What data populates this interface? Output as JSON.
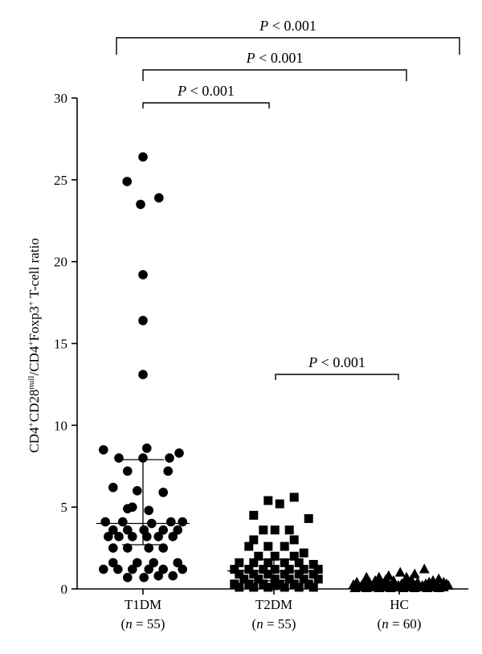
{
  "chart_data": {
    "type": "scatter",
    "subtype": "dot-plot",
    "ylabel": {
      "base1": "CD4",
      "sup1": "+",
      "base2": "CD28",
      "sup2": "null",
      "base3": "/CD4",
      "sup3": "+",
      "base4": "Foxp3",
      "sup4": "+",
      "base5": " T-cell ratio"
    },
    "ylim": [
      0,
      30
    ],
    "yticks": [
      "0",
      "5",
      "10",
      "15",
      "20",
      "25",
      "30"
    ],
    "grid": false,
    "legend": "none",
    "categories": [
      {
        "name": "T1DM",
        "n_prefix": "(",
        "n_var": "n",
        "n_suffix": " = 55)"
      },
      {
        "name": "T2DM",
        "n_prefix": "(",
        "n_var": "n",
        "n_suffix": " = 55)"
      },
      {
        "name": "HC",
        "n_prefix": "(",
        "n_var": "n",
        "n_suffix": " = 60)"
      }
    ],
    "comparisons": [
      {
        "from": 0,
        "to": 2,
        "p_symbol": "P",
        "p_text": " < 0.001"
      },
      {
        "from": 0,
        "to": 1,
        "p_symbol": "P",
        "p_text": " < 0.001"
      },
      {
        "from": 0,
        "to": 1,
        "p_symbol": "P",
        "p_text": " < 0.001"
      },
      {
        "from": 1,
        "to": 2,
        "p_symbol": "P",
        "p_text": " < 0.001"
      }
    ],
    "series": [
      {
        "group": "T1DM",
        "marker": "circle",
        "median": 4.0,
        "iqr": [
          2.7,
          7.9
        ],
        "points": [
          [
            0,
            26.4
          ],
          [
            -0.33,
            24.9
          ],
          [
            0.33,
            23.9
          ],
          [
            -0.05,
            23.5
          ],
          [
            0,
            19.2
          ],
          [
            0,
            16.4
          ],
          [
            0,
            13.1
          ],
          [
            -0.82,
            8.5
          ],
          [
            -0.5,
            8.0
          ],
          [
            0,
            8.0
          ],
          [
            0.55,
            8.0
          ],
          [
            0.75,
            8.3
          ],
          [
            0.08,
            8.6
          ],
          [
            -0.32,
            7.2
          ],
          [
            0.52,
            7.2
          ],
          [
            -0.62,
            6.2
          ],
          [
            -0.12,
            6.0
          ],
          [
            0.42,
            5.9
          ],
          [
            -0.22,
            5.0
          ],
          [
            -0.32,
            4.9
          ],
          [
            0.12,
            4.8
          ],
          [
            -0.78,
            4.1
          ],
          [
            -0.42,
            4.1
          ],
          [
            0.18,
            4.0
          ],
          [
            0.58,
            4.1
          ],
          [
            0.82,
            4.1
          ],
          [
            -0.62,
            3.6
          ],
          [
            -0.32,
            3.6
          ],
          [
            0.02,
            3.6
          ],
          [
            0.42,
            3.6
          ],
          [
            0.72,
            3.6
          ],
          [
            -0.72,
            3.2
          ],
          [
            -0.5,
            3.2
          ],
          [
            -0.22,
            3.2
          ],
          [
            0.08,
            3.2
          ],
          [
            0.32,
            3.2
          ],
          [
            0.62,
            3.2
          ],
          [
            -0.62,
            2.5
          ],
          [
            -0.32,
            2.5
          ],
          [
            0.12,
            2.5
          ],
          [
            0.42,
            2.5
          ],
          [
            -0.62,
            1.6
          ],
          [
            -0.12,
            1.6
          ],
          [
            0.22,
            1.6
          ],
          [
            0.72,
            1.6
          ],
          [
            -0.82,
            1.2
          ],
          [
            -0.52,
            1.2
          ],
          [
            -0.22,
            1.2
          ],
          [
            0.12,
            1.2
          ],
          [
            0.42,
            1.2
          ],
          [
            0.82,
            1.2
          ],
          [
            -0.32,
            0.7
          ],
          [
            0.02,
            0.7
          ],
          [
            0.32,
            0.8
          ],
          [
            0.62,
            0.8
          ]
        ]
      },
      {
        "group": "T2DM",
        "marker": "square",
        "median": 1.1,
        "iqr": [
          0.5,
          1.8
        ],
        "points": [
          [
            -0.12,
            5.4
          ],
          [
            0.12,
            5.2
          ],
          [
            0.42,
            5.6
          ],
          [
            -0.42,
            4.5
          ],
          [
            0.72,
            4.3
          ],
          [
            -0.22,
            3.6
          ],
          [
            0.02,
            3.6
          ],
          [
            0.32,
            3.6
          ],
          [
            -0.42,
            3.0
          ],
          [
            0.42,
            3.0
          ],
          [
            -0.52,
            2.6
          ],
          [
            -0.12,
            2.6
          ],
          [
            0.22,
            2.6
          ],
          [
            0.62,
            2.2
          ],
          [
            -0.32,
            2.0
          ],
          [
            0.02,
            2.0
          ],
          [
            0.42,
            2.0
          ],
          [
            -0.72,
            1.6
          ],
          [
            -0.42,
            1.6
          ],
          [
            -0.12,
            1.6
          ],
          [
            0.22,
            1.6
          ],
          [
            0.52,
            1.6
          ],
          [
            0.82,
            1.5
          ],
          [
            -0.82,
            1.2
          ],
          [
            -0.52,
            1.2
          ],
          [
            -0.22,
            1.2
          ],
          [
            0.02,
            1.2
          ],
          [
            0.32,
            1.2
          ],
          [
            0.62,
            1.2
          ],
          [
            0.92,
            1.2
          ],
          [
            -0.72,
            0.9
          ],
          [
            -0.42,
            0.9
          ],
          [
            -0.12,
            0.9
          ],
          [
            0.22,
            0.9
          ],
          [
            0.52,
            0.9
          ],
          [
            0.82,
            0.9
          ],
          [
            -0.62,
            0.6
          ],
          [
            -0.32,
            0.6
          ],
          [
            0.02,
            0.6
          ],
          [
            0.32,
            0.6
          ],
          [
            0.62,
            0.6
          ],
          [
            0.92,
            0.6
          ],
          [
            -0.82,
            0.3
          ],
          [
            -0.52,
            0.3
          ],
          [
            -0.22,
            0.3
          ],
          [
            0.12,
            0.3
          ],
          [
            0.42,
            0.3
          ],
          [
            0.72,
            0.3
          ],
          [
            -0.72,
            0.1
          ],
          [
            -0.42,
            0.1
          ],
          [
            -0.12,
            0.1
          ],
          [
            0.22,
            0.1
          ],
          [
            0.52,
            0.1
          ],
          [
            0.82,
            0.1
          ],
          [
            0.02,
            0.2
          ]
        ]
      },
      {
        "group": "HC",
        "marker": "triangle",
        "median": 0.2,
        "iqr": [
          0.1,
          0.4
        ],
        "points": [
          [
            -0.68,
            0.7
          ],
          [
            -0.42,
            0.7
          ],
          [
            -0.22,
            0.8
          ],
          [
            0.02,
            1.0
          ],
          [
            0.32,
            0.9
          ],
          [
            0.52,
            1.2
          ],
          [
            0.82,
            0.6
          ],
          [
            -0.88,
            0.4
          ],
          [
            -0.62,
            0.4
          ],
          [
            -0.38,
            0.4
          ],
          [
            -0.12,
            0.5
          ],
          [
            0.12,
            0.4
          ],
          [
            0.38,
            0.4
          ],
          [
            0.62,
            0.4
          ],
          [
            0.92,
            0.4
          ],
          [
            -0.78,
            0.2
          ],
          [
            -0.52,
            0.2
          ],
          [
            -0.28,
            0.2
          ],
          [
            -0.02,
            0.2
          ],
          [
            0.22,
            0.2
          ],
          [
            0.48,
            0.2
          ],
          [
            0.72,
            0.2
          ],
          [
            1.02,
            0.2
          ],
          [
            -0.92,
            0.05
          ],
          [
            -0.68,
            0.05
          ],
          [
            -0.42,
            0.05
          ],
          [
            -0.18,
            0.05
          ],
          [
            0.08,
            0.05
          ],
          [
            0.32,
            0.05
          ],
          [
            0.58,
            0.05
          ],
          [
            0.82,
            0.05
          ],
          [
            -0.82,
            0.1
          ],
          [
            -0.58,
            0.1
          ],
          [
            -0.32,
            0.1
          ],
          [
            -0.08,
            0.1
          ],
          [
            0.18,
            0.1
          ],
          [
            0.42,
            0.1
          ],
          [
            0.68,
            0.1
          ],
          [
            0.92,
            0.1
          ],
          [
            -0.72,
            0.3
          ],
          [
            -0.48,
            0.3
          ],
          [
            -0.22,
            0.3
          ],
          [
            0.05,
            0.3
          ],
          [
            0.28,
            0.3
          ],
          [
            0.55,
            0.3
          ],
          [
            0.78,
            0.3
          ],
          [
            -0.62,
            0.15
          ],
          [
            -0.38,
            0.15
          ],
          [
            -0.12,
            0.15
          ],
          [
            0.12,
            0.15
          ],
          [
            0.38,
            0.15
          ],
          [
            0.62,
            0.15
          ],
          [
            0.88,
            0.15
          ],
          [
            -0.5,
            0.5
          ],
          [
            -0.28,
            0.55
          ],
          [
            0.25,
            0.55
          ],
          [
            0.7,
            0.5
          ],
          [
            -0.95,
            0.25
          ],
          [
            0.98,
            0.3
          ],
          [
            0.15,
            0.7
          ]
        ]
      }
    ]
  }
}
